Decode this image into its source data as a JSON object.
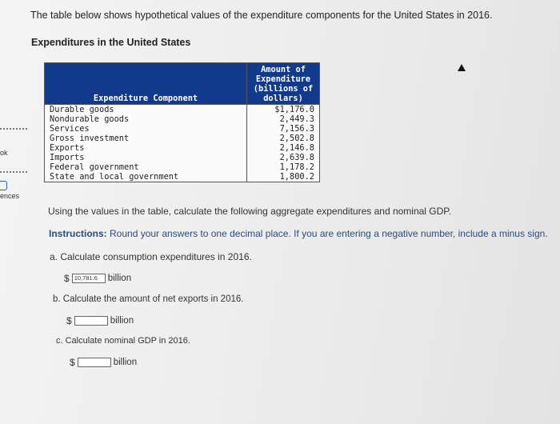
{
  "intro": "The table below shows hypothetical values of the expenditure components for the United States in 2016.",
  "subheading": "Expenditures in the United States",
  "left_hints": [
    "ok",
    "ences"
  ],
  "table": {
    "headers": [
      "Expenditure Component",
      "Amount of Expenditure (billions of dollars)"
    ],
    "rows": [
      {
        "component": "Durable goods",
        "amount": "$1,176.0"
      },
      {
        "component": "Nondurable goods",
        "amount": "2,449.3"
      },
      {
        "component": "Services",
        "amount": "7,156.3"
      },
      {
        "component": "Gross investment",
        "amount": "2,502.8"
      },
      {
        "component": "Exports",
        "amount": "2,146.8"
      },
      {
        "component": "Imports",
        "amount": "2,639.8"
      },
      {
        "component": "Federal government",
        "amount": "1,178.2"
      },
      {
        "component": "State and local government",
        "amount": "1,800.2"
      }
    ]
  },
  "questions": {
    "intro": "Using the values in the table, calculate the following aggregate expenditures and nominal GDP.",
    "instructions_label": "Instructions:",
    "instructions_text": " Round your answers to one decimal place. If you are entering a negative number, include a minus sign.",
    "a": {
      "text": "a. Calculate consumption expenditures in 2016.",
      "currency": "$",
      "value": "10,781.6",
      "unit": "billion"
    },
    "b": {
      "text": "b. Calculate the amount of net exports in 2016.",
      "currency": "$",
      "value": "",
      "unit": "billion"
    },
    "c": {
      "text": "c. Calculate nominal GDP in 2016.",
      "currency": "$",
      "value": "",
      "unit": "billion"
    }
  }
}
